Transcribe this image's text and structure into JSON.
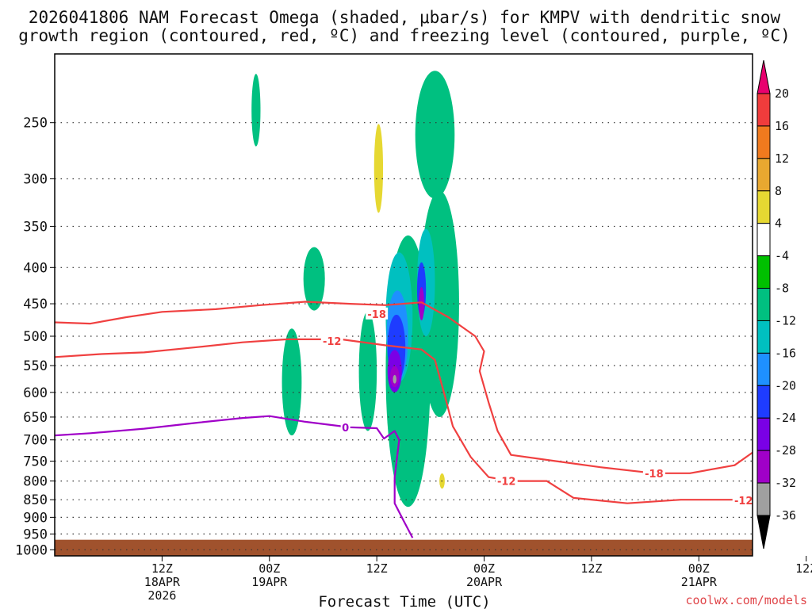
{
  "chart_data": {
    "type": "heatmap",
    "title_lines": [
      "2026041806 NAM Forecast Omega (shaded, μbar/s) for KMPV with dendritic snow",
      "growth region (contoured, red, ºC) and freezing level (contoured, purple, ºC)"
    ],
    "xlabel": "Forecast Time (UTC)",
    "ylabel": "",
    "credit": "coolwx.com/models",
    "x_hours_range": [
      -6,
      72
    ],
    "x_ticks": [
      {
        "hour": 6,
        "lines": [
          "12Z",
          "18APR",
          "2026"
        ]
      },
      {
        "hour": 18,
        "lines": [
          "00Z",
          "19APR"
        ]
      },
      {
        "hour": 30,
        "lines": [
          "12Z"
        ]
      },
      {
        "hour": 42,
        "lines": [
          "00Z",
          "20APR"
        ]
      },
      {
        "hour": 54,
        "lines": [
          "12Z"
        ]
      },
      {
        "hour": 66,
        "lines": [
          "00Z",
          "21APR"
        ]
      },
      {
        "hour": 78,
        "lines": [
          "12Z"
        ]
      }
    ],
    "y_axis": {
      "scale": "log-pressure",
      "range_hPa": [
        200,
        1020
      ],
      "ticks": [
        250,
        300,
        350,
        400,
        450,
        500,
        550,
        600,
        650,
        700,
        750,
        800,
        850,
        900,
        950,
        1000
      ]
    },
    "surface_pressure_hPa": 968,
    "colorbar": {
      "levels": [
        20,
        16,
        12,
        8,
        4,
        -4,
        -8,
        -12,
        -16,
        -20,
        -24,
        -28,
        -32,
        -36
      ],
      "colors": [
        "#e8006e",
        "#f03c3c",
        "#f07a1e",
        "#e8a830",
        "#e6d832",
        "#ffffff",
        "#00c000",
        "#00c080",
        "#00c0c0",
        "#1e90ff",
        "#1e3cff",
        "#7a00e6",
        "#a000c8",
        "#a0a0a0",
        "#000000"
      ]
    },
    "omega_regions": [
      {
        "level": 4,
        "center_hour": -5.5,
        "center_hPa": 590,
        "dh": 0.5,
        "dp": 50
      },
      {
        "level": 4,
        "center_hour": 8.5,
        "center_hPa": 265,
        "dh": 0.6,
        "dp": 35
      },
      {
        "level": -8,
        "center_hour": 16.5,
        "center_hPa": 240,
        "dh": 0.5,
        "dp": 30
      },
      {
        "level": 4,
        "center_hour": 21,
        "center_hPa": 265,
        "dh": 0.8,
        "dp": 60
      },
      {
        "level": 4,
        "center_hour": 19.5,
        "center_hPa": 415,
        "dh": 0.3,
        "dp": 15
      },
      {
        "level": -8,
        "center_hour": 23,
        "center_hPa": 415,
        "dh": 1.2,
        "dp": 45
      },
      {
        "level": -8,
        "center_hour": 20.5,
        "center_hPa": 580,
        "dh": 1.1,
        "dp": 110
      },
      {
        "level": 4,
        "center_hour": 17,
        "center_hPa": 880,
        "dh": 2,
        "dp": 12
      },
      {
        "level": -8,
        "center_hour": 29,
        "center_hPa": 560,
        "dh": 1,
        "dp": 120
      },
      {
        "level": 4,
        "center_hour": 30.4,
        "center_hPa": 265,
        "dh": 1,
        "dp": 70
      },
      {
        "level": 8,
        "center_hour": 30.2,
        "center_hPa": 290,
        "dh": 0.5,
        "dp": 45
      },
      {
        "level": -8,
        "center_hour": 36.5,
        "center_hPa": 260,
        "dh": 2.2,
        "dp": 60
      },
      {
        "level": -8,
        "center_hour": 33.5,
        "center_hPa": 560,
        "dh": 2.5,
        "dp": 310
      },
      {
        "level": -8,
        "center_hour": 37,
        "center_hPa": 450,
        "dh": 2.2,
        "dp": 200
      },
      {
        "level": -12,
        "center_hour": 32.5,
        "center_hPa": 470,
        "dh": 1.5,
        "dp": 110
      },
      {
        "level": -16,
        "center_hour": 32.3,
        "center_hPa": 500,
        "dh": 1.2,
        "dp": 80
      },
      {
        "level": -20,
        "center_hour": 32.2,
        "center_hPa": 520,
        "dh": 1,
        "dp": 60
      },
      {
        "level": -24,
        "center_hour": 32,
        "center_hPa": 560,
        "dh": 0.8,
        "dp": 40
      },
      {
        "level": -28,
        "center_hour": 32,
        "center_hPa": 570,
        "dh": 0.5,
        "dp": 20
      },
      {
        "level": -32,
        "center_hour": 32,
        "center_hPa": 575,
        "dh": 0.2,
        "dp": 8
      },
      {
        "level": -12,
        "center_hour": 35.5,
        "center_hPa": 420,
        "dh": 1,
        "dp": 80
      },
      {
        "level": -20,
        "center_hour": 35,
        "center_hPa": 430,
        "dh": 0.5,
        "dp": 40
      },
      {
        "level": -28,
        "center_hour": 35,
        "center_hPa": 450,
        "dh": 0.3,
        "dp": 25
      },
      {
        "level": 4,
        "center_hour": 37.5,
        "center_hPa": 810,
        "dh": 1.5,
        "dp": 60
      },
      {
        "level": 4,
        "center_hour": 40.5,
        "center_hPa": 720,
        "dh": 1.2,
        "dp": 40
      },
      {
        "level": 4,
        "center_hour": 43.5,
        "center_hPa": 710,
        "dh": 2,
        "dp": 50
      },
      {
        "level": 8,
        "center_hour": 37.3,
        "center_hPa": 800,
        "dh": 0.3,
        "dp": 20
      },
      {
        "level": 4,
        "center_hour": 44.5,
        "center_hPa": 420,
        "dh": 1.5,
        "dp": 45
      },
      {
        "level": 4,
        "center_hour": 56,
        "center_hPa": 875,
        "dh": 1,
        "dp": 8
      },
      {
        "level": 4,
        "center_hour": 63,
        "center_hPa": 830,
        "dh": 1.8,
        "dp": 35
      }
    ],
    "dgz_contours": [
      {
        "label": "-18",
        "color": "#f04040",
        "points": [
          [
            -6,
            478
          ],
          [
            -2,
            480
          ],
          [
            2,
            470
          ],
          [
            6,
            462
          ],
          [
            12,
            458
          ],
          [
            17,
            452
          ],
          [
            22,
            447
          ],
          [
            27,
            450
          ],
          [
            31,
            452
          ],
          [
            35,
            448
          ],
          [
            38,
            470
          ],
          [
            41,
            500
          ],
          [
            42,
            525
          ],
          [
            41.5,
            560
          ],
          [
            42.5,
            620
          ],
          [
            43.5,
            680
          ],
          [
            45,
            735
          ],
          [
            50,
            750
          ],
          [
            55,
            765
          ],
          [
            61,
            780
          ],
          [
            65,
            780
          ],
          [
            70,
            760
          ],
          [
            74,
            700
          ],
          [
            78,
            630
          ],
          [
            80,
            600
          ],
          [
            84,
            593
          ]
        ]
      },
      {
        "label": "-12",
        "color": "#f04040",
        "points": [
          [
            -6,
            535
          ],
          [
            -1,
            530
          ],
          [
            4,
            527
          ],
          [
            10,
            518
          ],
          [
            15,
            510
          ],
          [
            20,
            505
          ],
          [
            26,
            505
          ],
          [
            31,
            515
          ],
          [
            35,
            522
          ],
          [
            36.5,
            540
          ],
          [
            37.5,
            600
          ],
          [
            38.5,
            670
          ],
          [
            40.5,
            740
          ],
          [
            42.5,
            790
          ],
          [
            45,
            800
          ],
          [
            47.5,
            800
          ],
          [
            49,
            800
          ],
          [
            52,
            845
          ],
          [
            58,
            860
          ],
          [
            64,
            850
          ],
          [
            70,
            850
          ],
          [
            76,
            840
          ],
          [
            80,
            815
          ],
          [
            81.5,
            790
          ],
          [
            81,
            755
          ],
          [
            82,
            720
          ],
          [
            82.5,
            696
          ],
          [
            84,
            695
          ]
        ]
      }
    ],
    "dgz_labels": [
      {
        "text": "-18",
        "hour": 30,
        "hPa": 465
      },
      {
        "text": "-12",
        "hour": 25,
        "hPa": 508
      },
      {
        "text": "-12",
        "hour": 44.5,
        "hPa": 800
      },
      {
        "text": "-18",
        "hour": 61,
        "hPa": 780
      },
      {
        "text": "-12",
        "hour": 71,
        "hPa": 852
      }
    ],
    "freezing_contours": [
      {
        "label": "0",
        "color": "#a000c8",
        "points": [
          [
            -6,
            690
          ],
          [
            -2,
            685
          ],
          [
            4,
            675
          ],
          [
            10,
            662
          ],
          [
            15,
            652
          ],
          [
            18,
            648
          ],
          [
            22,
            660
          ],
          [
            27,
            672
          ],
          [
            30,
            674
          ],
          [
            30.8,
            697
          ],
          [
            32,
            680
          ],
          [
            32.5,
            700
          ],
          [
            32,
            790
          ],
          [
            32,
            860
          ],
          [
            33,
            910
          ],
          [
            34,
            962
          ]
        ]
      },
      {
        "label": "",
        "color": "#a000c8",
        "points": [
          [
            79,
            968
          ],
          [
            84,
            945
          ]
        ]
      }
    ],
    "freezing_labels": [
      {
        "text": "0",
        "hour": 26.5,
        "hPa": 672
      }
    ]
  }
}
